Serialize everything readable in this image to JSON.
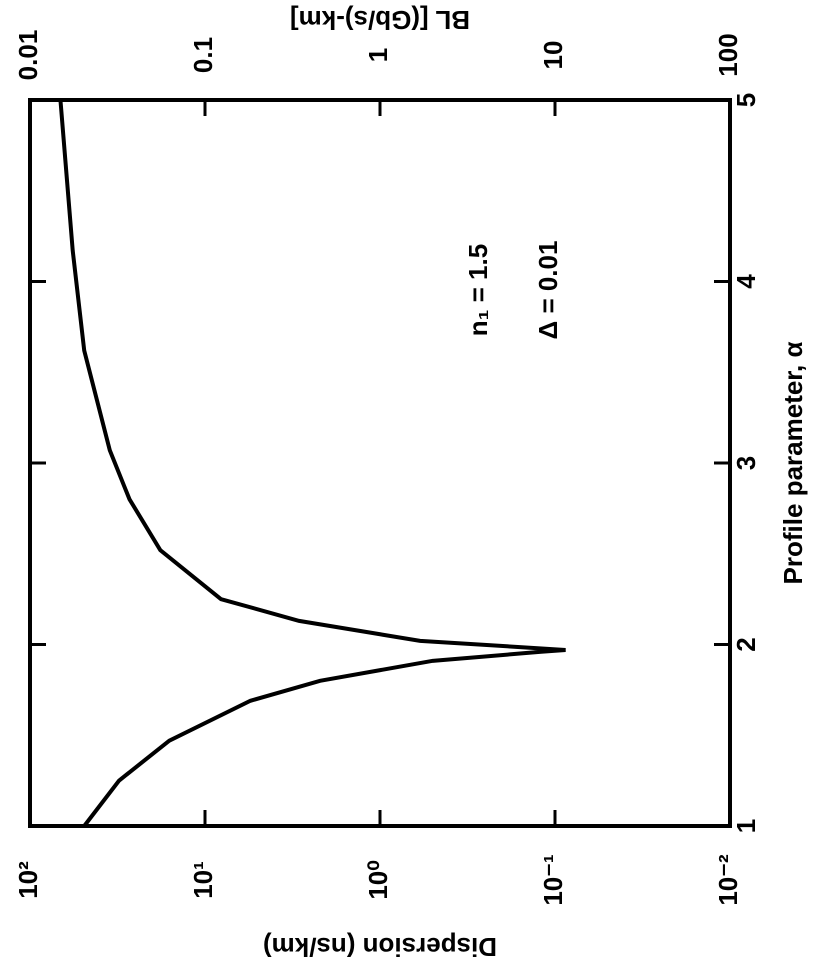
{
  "chart_data": {
    "type": "line",
    "x_label": "Profile parameter, α",
    "y_label": "Dispersion  (ns/km)",
    "y2_label": "BL [(Gb/s)-km]",
    "x": [
      1,
      1.25,
      1.47,
      1.69,
      1.8,
      1.91,
      1.96,
      1.97,
      2.02,
      2.13,
      2.25,
      2.52,
      2.8,
      3.07,
      3.62,
      4.17,
      5
    ],
    "series": [
      {
        "color": "#000000",
        "values": [
          49,
          31,
          16,
          5.5,
          2.2,
          0.5,
          0.12,
          0.087,
          0.59,
          2.9,
          8.1,
          18,
          27,
          35,
          49,
          57,
          67
        ]
      }
    ],
    "xlim": [
      1,
      5
    ],
    "xticks": [
      1,
      2,
      3,
      4,
      5
    ],
    "ylim": [
      0.01,
      100
    ],
    "ylog": true,
    "yticks": [
      {
        "value": 100,
        "label": "10²"
      },
      {
        "value": 10,
        "label": "10¹"
      },
      {
        "value": 1,
        "label": "10⁰"
      },
      {
        "value": 0.1,
        "label": "10⁻¹"
      },
      {
        "value": 0.01,
        "label": "10⁻²"
      }
    ],
    "y2lim": [
      0.01,
      100
    ],
    "y2log": true,
    "y2ticks": [
      0.01,
      0.1,
      1,
      10,
      100
    ],
    "annotations": [
      "n₁ = 1.5",
      "Δ = 0.01"
    ]
  }
}
